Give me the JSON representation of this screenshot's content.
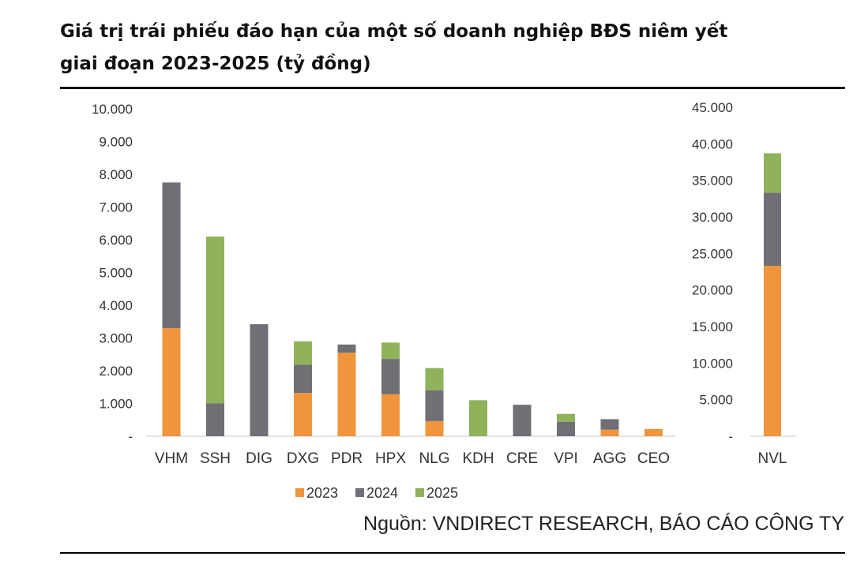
{
  "title_line1": "Giá trị trái phiếu đáo hạn của một số doanh nghiệp BĐS niêm yết",
  "title_line2": "giai đoạn 2023-2025 (tỷ đồng)",
  "source": "Nguồn: VNDIRECT RESEARCH, BÁO CÁO CÔNG TY",
  "colors": {
    "2023": "#f0953b",
    "2024": "#6f6f75",
    "2025": "#8fb25b"
  },
  "chart_data": [
    {
      "type": "bar",
      "stacked": true,
      "categories": [
        "VHM",
        "SSH",
        "DIG",
        "DXG",
        "PDR",
        "HPX",
        "NLG",
        "KDH",
        "CRE",
        "VPI",
        "AGG",
        "CEO"
      ],
      "series": [
        {
          "name": "2023",
          "values": [
            3300,
            0,
            0,
            1320,
            2550,
            1280,
            460,
            0,
            0,
            0,
            200,
            220
          ]
        },
        {
          "name": "2024",
          "values": [
            4450,
            1000,
            3420,
            860,
            250,
            1080,
            940,
            0,
            960,
            440,
            320,
            0
          ]
        },
        {
          "name": "2025",
          "values": [
            0,
            5100,
            0,
            720,
            0,
            500,
            680,
            1100,
            0,
            240,
            0,
            0
          ]
        }
      ],
      "ylim": [
        0,
        10000
      ],
      "yticks": [
        "-",
        "1.000",
        "2.000",
        "3.000",
        "4.000",
        "5.000",
        "6.000",
        "7.000",
        "8.000",
        "9.000",
        "10.000"
      ],
      "grid": false,
      "legend": "bottom"
    },
    {
      "type": "bar",
      "stacked": true,
      "categories": [
        "NVL"
      ],
      "series": [
        {
          "name": "2023",
          "values": [
            23300
          ]
        },
        {
          "name": "2024",
          "values": [
            10000
          ]
        },
        {
          "name": "2025",
          "values": [
            5400
          ]
        }
      ],
      "ylim": [
        0,
        45000
      ],
      "yticks": [
        "-",
        "5.000",
        "10.000",
        "15.000",
        "20.000",
        "25.000",
        "30.000",
        "35.000",
        "40.000",
        "45.000"
      ],
      "grid": false
    }
  ]
}
